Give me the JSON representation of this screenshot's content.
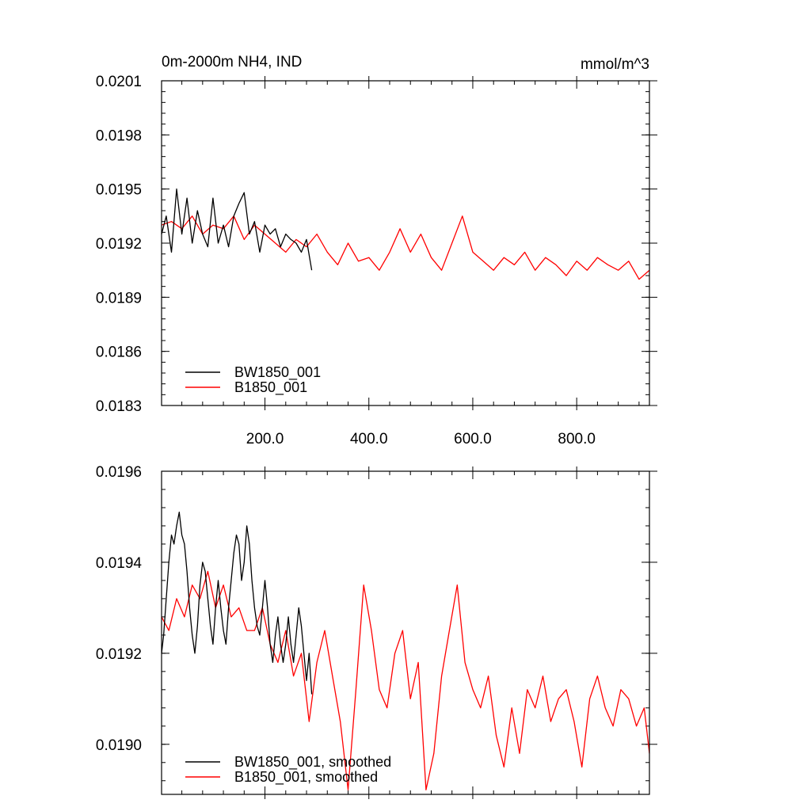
{
  "chart_data": [
    {
      "type": "line",
      "title": "0m-2000m NH4, IND",
      "units": "mmol/m^3",
      "xlim": [
        1,
        940
      ],
      "ylim": [
        0.0183,
        0.0201
      ],
      "x_ticks": [
        200,
        400,
        600,
        800
      ],
      "x_tick_labels": [
        "200.0",
        "400.0",
        "600.0",
        "800.0"
      ],
      "y_ticks": [
        0.0183,
        0.0186,
        0.0189,
        0.0192,
        0.0195,
        0.0198,
        0.0201
      ],
      "y_tick_labels": [
        "0.0183",
        "0.0186",
        "0.0189",
        "0.0192",
        "0.0195",
        "0.0198",
        "0.0201"
      ],
      "grid": false,
      "legend_position": "bottom-left",
      "series": [
        {
          "name": "BW1850_001",
          "color": "#000000",
          "x": [
            1,
            10,
            20,
            30,
            40,
            50,
            60,
            70,
            80,
            90,
            100,
            110,
            120,
            130,
            140,
            150,
            160,
            170,
            180,
            190,
            200,
            210,
            220,
            230,
            240,
            250,
            260,
            270,
            280,
            290
          ],
          "y": [
            0.01925,
            0.01935,
            0.01915,
            0.0195,
            0.01925,
            0.01945,
            0.0192,
            0.01938,
            0.01925,
            0.01918,
            0.01945,
            0.0192,
            0.0193,
            0.01918,
            0.01935,
            0.01942,
            0.01948,
            0.01925,
            0.01932,
            0.01915,
            0.0193,
            0.01925,
            0.01928,
            0.01918,
            0.01925,
            0.01922,
            0.0192,
            0.01915,
            0.01922,
            0.01905
          ]
        },
        {
          "name": "B1850_001",
          "color": "#ff0000",
          "x": [
            1,
            20,
            40,
            60,
            80,
            100,
            120,
            140,
            160,
            180,
            200,
            220,
            240,
            260,
            280,
            300,
            320,
            340,
            360,
            380,
            400,
            420,
            440,
            460,
            480,
            500,
            520,
            540,
            560,
            580,
            600,
            620,
            640,
            660,
            680,
            700,
            720,
            740,
            760,
            780,
            800,
            820,
            840,
            860,
            880,
            900,
            920,
            940
          ],
          "y": [
            0.0193,
            0.01932,
            0.01928,
            0.01935,
            0.01925,
            0.0193,
            0.01928,
            0.01935,
            0.01922,
            0.0193,
            0.01925,
            0.0192,
            0.01915,
            0.01922,
            0.01918,
            0.01925,
            0.01915,
            0.01908,
            0.0192,
            0.0191,
            0.01912,
            0.01905,
            0.01915,
            0.01928,
            0.01915,
            0.01925,
            0.01912,
            0.01905,
            0.0192,
            0.01935,
            0.01915,
            0.0191,
            0.01905,
            0.01912,
            0.01908,
            0.01915,
            0.01905,
            0.01912,
            0.01908,
            0.01902,
            0.0191,
            0.01905,
            0.01912,
            0.01908,
            0.01905,
            0.0191,
            0.019,
            0.01905
          ]
        }
      ]
    },
    {
      "type": "line",
      "title": "",
      "xlim": [
        1,
        940
      ],
      "ylim": [
        0.01889,
        0.0196
      ],
      "y_ticks": [
        0.019,
        0.0192,
        0.0194,
        0.0196
      ],
      "y_tick_labels": [
        "0.0190",
        "0.0192",
        "0.0194",
        "0.0196"
      ],
      "grid": false,
      "legend_position": "bottom-left",
      "series": [
        {
          "name": "BW1850_001, smoothed",
          "color": "#000000",
          "x": [
            1,
            5,
            10,
            15,
            20,
            25,
            30,
            35,
            40,
            45,
            50,
            55,
            60,
            65,
            70,
            75,
            80,
            85,
            90,
            95,
            100,
            105,
            110,
            115,
            120,
            125,
            130,
            135,
            140,
            145,
            150,
            155,
            160,
            165,
            170,
            175,
            180,
            185,
            190,
            195,
            200,
            205,
            210,
            215,
            220,
            225,
            230,
            235,
            240,
            245,
            250,
            255,
            260,
            265,
            270,
            275,
            280,
            285,
            290
          ],
          "y": [
            0.0192,
            0.01924,
            0.01932,
            0.0194,
            0.01946,
            0.01944,
            0.01948,
            0.01951,
            0.01946,
            0.01944,
            0.01938,
            0.0193,
            0.01924,
            0.0192,
            0.01926,
            0.01935,
            0.0194,
            0.01938,
            0.01932,
            0.01926,
            0.01922,
            0.0193,
            0.01936,
            0.0193,
            0.01925,
            0.01922,
            0.0193,
            0.01936,
            0.01942,
            0.01946,
            0.01944,
            0.01936,
            0.0194,
            0.01948,
            0.01944,
            0.01936,
            0.0193,
            0.01926,
            0.01924,
            0.0193,
            0.01936,
            0.0193,
            0.01922,
            0.01918,
            0.01924,
            0.01928,
            0.01922,
            0.01918,
            0.01922,
            0.01928,
            0.01922,
            0.01918,
            0.01924,
            0.0193,
            0.01926,
            0.0192,
            0.01914,
            0.0192,
            0.01911
          ]
        },
        {
          "name": "B1850_001, smoothed",
          "color": "#ff0000",
          "x": [
            1,
            15,
            30,
            45,
            60,
            75,
            90,
            105,
            120,
            135,
            150,
            165,
            180,
            195,
            210,
            225,
            240,
            255,
            270,
            285,
            300,
            315,
            330,
            345,
            360,
            375,
            390,
            405,
            420,
            435,
            450,
            465,
            480,
            495,
            510,
            525,
            540,
            555,
            570,
            585,
            600,
            615,
            630,
            645,
            660,
            675,
            690,
            705,
            720,
            735,
            750,
            765,
            780,
            795,
            810,
            825,
            840,
            855,
            870,
            885,
            900,
            915,
            930,
            940
          ],
          "y": [
            0.01928,
            0.01925,
            0.01932,
            0.01928,
            0.01935,
            0.01932,
            0.01938,
            0.0193,
            0.01935,
            0.01928,
            0.0193,
            0.01925,
            0.01925,
            0.0193,
            0.01922,
            0.01918,
            0.01925,
            0.01915,
            0.0192,
            0.01905,
            0.01918,
            0.01925,
            0.01915,
            0.01905,
            0.0189,
            0.01912,
            0.01935,
            0.01925,
            0.01912,
            0.01908,
            0.0192,
            0.01925,
            0.0191,
            0.01918,
            0.0189,
            0.01898,
            0.01915,
            0.01925,
            0.01935,
            0.01918,
            0.01912,
            0.01908,
            0.01915,
            0.01902,
            0.01895,
            0.01908,
            0.01898,
            0.01912,
            0.01908,
            0.01915,
            0.01905,
            0.0191,
            0.01912,
            0.01905,
            0.01895,
            0.0191,
            0.01915,
            0.01908,
            0.01904,
            0.01912,
            0.0191,
            0.01904,
            0.01908,
            0.01898
          ]
        }
      ]
    }
  ]
}
